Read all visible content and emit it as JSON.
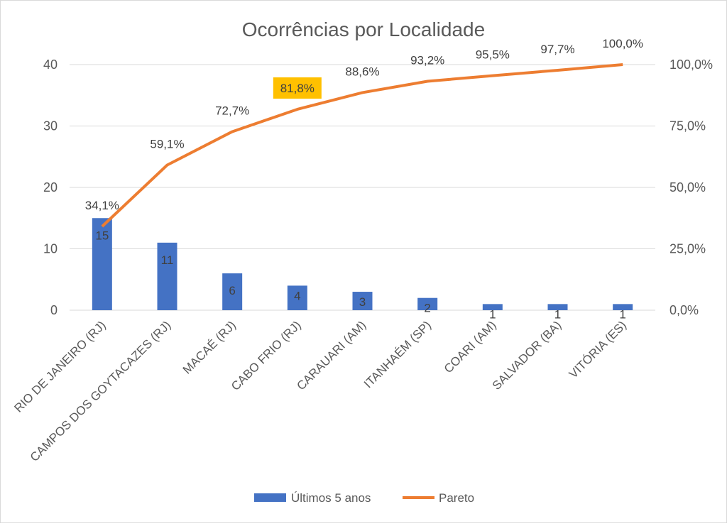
{
  "chart_data": {
    "type": "bar",
    "title": "Ocorrências por Localidade",
    "categories": [
      "RIO DE JANEIRO (RJ)",
      "CAMPOS DOS GOYTACAZES (RJ)",
      "MACAÉ (RJ)",
      "CABO FRIO (RJ)",
      "CARAUARI (AM)",
      "ITANHAÉM (SP)",
      "COARI (AM)",
      "SALVADOR (BA)",
      "VITÓRIA (ES)"
    ],
    "series": [
      {
        "name": "Últimos 5 anos",
        "kind": "bar",
        "axis": "left",
        "values": [
          15,
          11,
          6,
          4,
          3,
          2,
          1,
          1,
          1
        ],
        "labels": [
          "15",
          "11",
          "6",
          "4",
          "3",
          "2",
          "1",
          "1",
          "1"
        ]
      },
      {
        "name": "Pareto",
        "kind": "line",
        "axis": "right",
        "values": [
          34.1,
          59.1,
          72.7,
          81.8,
          88.6,
          93.2,
          95.5,
          97.7,
          100.0
        ],
        "labels": [
          "34,1%",
          "59,1%",
          "72,7%",
          "81,8%",
          "88,6%",
          "93,2%",
          "95,5%",
          "97,7%",
          "100,0%"
        ]
      }
    ],
    "ylim": [
      0,
      40
    ],
    "yticks": [
      "0",
      "10",
      "20",
      "30",
      "40"
    ],
    "y2lim": [
      0,
      100
    ],
    "y2ticks": [
      "0,0%",
      "25,0%",
      "50,0%",
      "75,0%",
      "100,0%"
    ],
    "highlight_label_index": 3,
    "legend_position": "bottom",
    "colors": {
      "bar": "#4472c4",
      "line": "#ed7d31",
      "highlight": "#ffc000",
      "grid": "#d9d9d9"
    }
  }
}
